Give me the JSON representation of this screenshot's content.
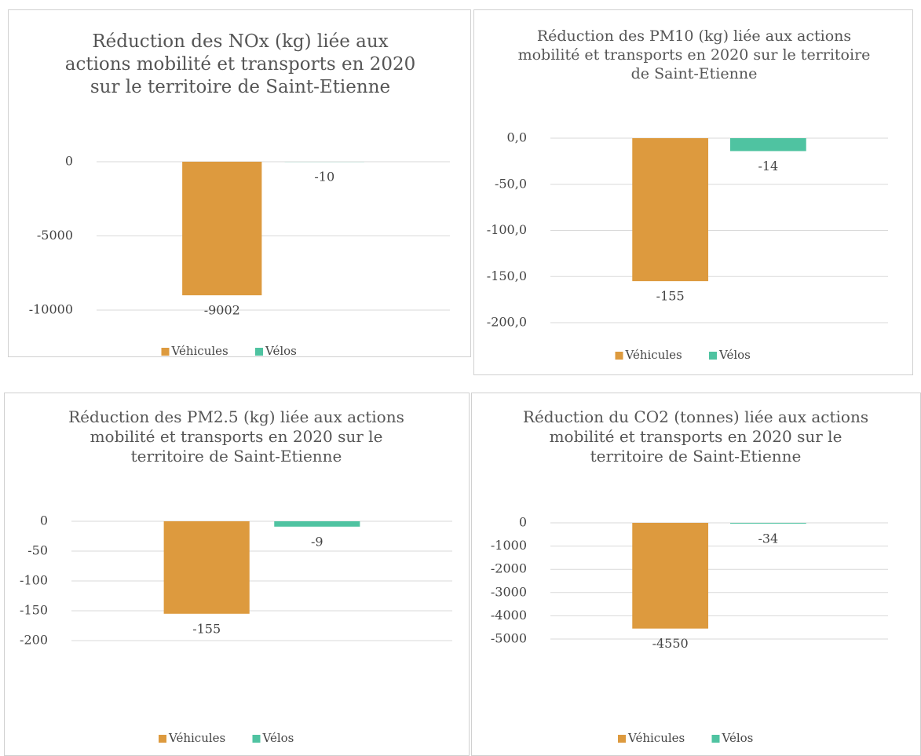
{
  "chart_data": [
    {
      "type": "bar",
      "title": "Réduction des NOx (kg) liée aux actions mobilité et transports en 2020 sur le territoire de Saint-Etienne",
      "series": [
        {
          "name": "Véhicules",
          "color": "#dd9a3e",
          "values": [
            -9002
          ]
        },
        {
          "name": "Vélos",
          "color": "#4fc3a1",
          "values": [
            -10
          ]
        }
      ],
      "ylim": [
        -10000,
        0
      ],
      "yticks": [
        0,
        -5000,
        -10000
      ],
      "grid": true,
      "legend": "bottom"
    },
    {
      "type": "bar",
      "title": "Réduction des PM10 (kg) liée aux actions mobilité et transports en 2020 sur le territoire de Saint-Etienne",
      "series": [
        {
          "name": "Véhicules",
          "color": "#dd9a3e",
          "values": [
            -155
          ]
        },
        {
          "name": "Vélos",
          "color": "#4fc3a1",
          "values": [
            -14
          ]
        }
      ],
      "ylim": [
        -200,
        0
      ],
      "yticks": [
        {
          "value": 0,
          "label": "0,0"
        },
        {
          "value": -50,
          "label": "-50,0"
        },
        {
          "value": -100,
          "label": "-100,0"
        },
        {
          "value": -150,
          "label": "-150,0"
        },
        {
          "value": -200,
          "label": "-200,0"
        }
      ],
      "grid": true,
      "legend": "bottom"
    },
    {
      "type": "bar",
      "title": "Réduction des PM2.5 (kg) liée aux actions mobilité et transports en 2020 sur le territoire de Saint-Etienne",
      "series": [
        {
          "name": "Véhicules",
          "color": "#dd9a3e",
          "values": [
            -155
          ]
        },
        {
          "name": "Vélos",
          "color": "#4fc3a1",
          "values": [
            -9
          ]
        }
      ],
      "ylim": [
        -200,
        0
      ],
      "yticks": [
        0,
        -50,
        -100,
        -150,
        -200
      ],
      "grid": true,
      "legend": "bottom"
    },
    {
      "type": "bar",
      "title": "Réduction du CO2 (tonnes) liée aux actions mobilité et transports en 2020 sur le territoire de Saint-Etienne",
      "series": [
        {
          "name": "Véhicules",
          "color": "#dd9a3e",
          "values": [
            -4550
          ]
        },
        {
          "name": "Vélos",
          "color": "#4fc3a1",
          "values": [
            -34
          ]
        }
      ],
      "ylim": [
        -5000,
        0
      ],
      "yticks": [
        0,
        -1000,
        -2000,
        -3000,
        -4000,
        -5000
      ],
      "grid": true,
      "legend": "bottom"
    }
  ]
}
